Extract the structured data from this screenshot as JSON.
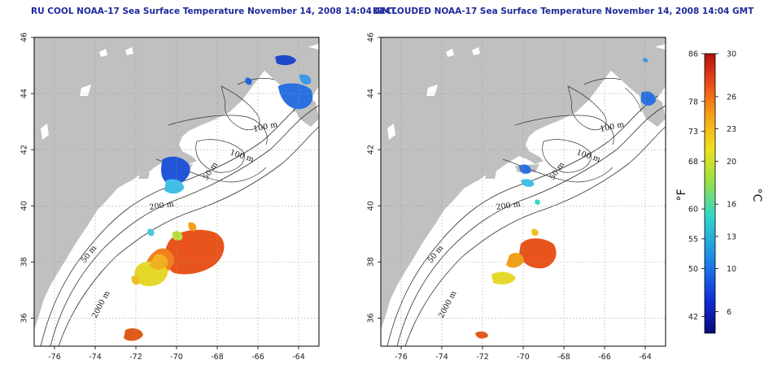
{
  "maps": [
    {
      "title": "RU COOL NOAA-17 Sea Surface Temperature November 14, 2008 14:04 GMT",
      "x_ticks": [
        "-76",
        "-74",
        "-72",
        "-70",
        "-68",
        "-66",
        "-64"
      ],
      "y_ticks": [
        "36",
        "38",
        "40",
        "42",
        "44",
        "46"
      ]
    },
    {
      "title": "DECLOUDED NOAA-17 Sea Surface Temperature November 14, 2008 14:04 GMT",
      "x_ticks": [
        "-76",
        "-74",
        "-72",
        "-70",
        "-68",
        "-66",
        "-64"
      ],
      "y_ticks": [
        "36",
        "38",
        "40",
        "42",
        "44",
        "46"
      ]
    }
  ],
  "contour_labels": {
    "c100a": "100 m",
    "c100b": "100 m",
    "c50a": "50 m",
    "c200": "200 m",
    "c50b": "50 m",
    "c2000": "2000 m"
  },
  "colorbar": {
    "fahrenheit_label": "°F",
    "celsius_label": "°C",
    "fahrenheit_ticks": [
      "86",
      "78",
      "73",
      "68",
      "60",
      "55",
      "50",
      "42"
    ],
    "celsius_ticks": [
      "30",
      "26",
      "23",
      "20",
      "16",
      "13",
      "10",
      "6"
    ]
  },
  "colors": {
    "land": "#c0c0c0",
    "ocean": "#ffffff",
    "title": "#1e2a9c",
    "warm": "#e8541c",
    "yellow": "#e6d82a",
    "cold_blue": "#2255d8",
    "cyan": "#40c0e8"
  }
}
